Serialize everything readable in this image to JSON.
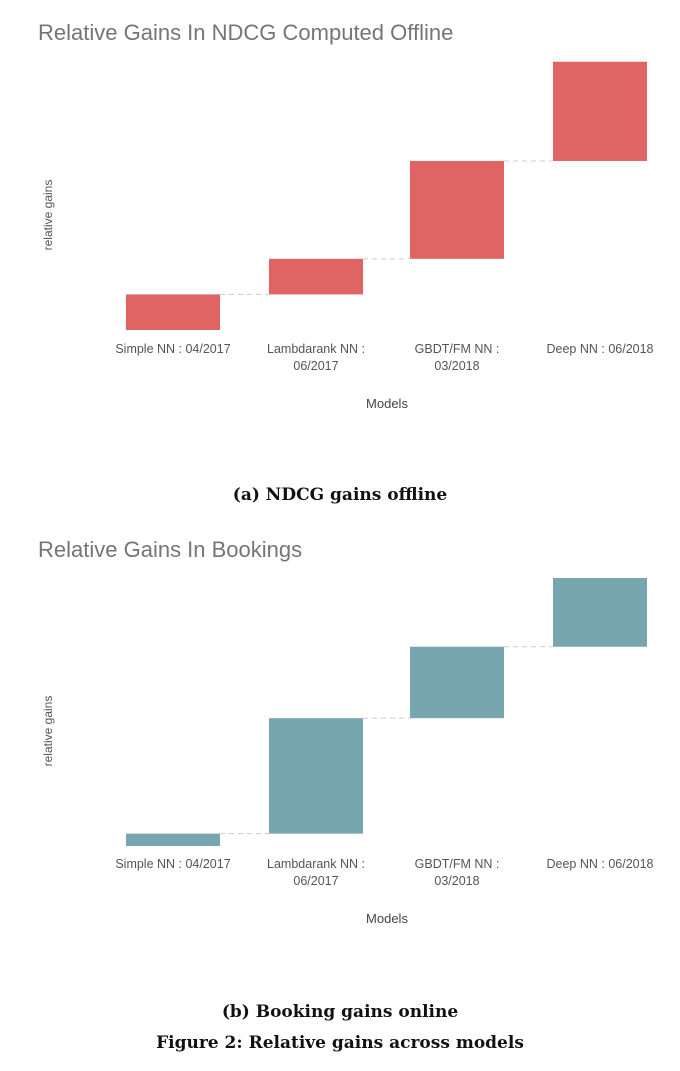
{
  "chart_data": [
    {
      "type": "waterfall",
      "title": "Relative Gains In NDCG Computed Offline",
      "xlabel": "Models",
      "ylabel": "relative gains",
      "categories": [
        "Simple NN : 04/2017",
        "Lambdarank NN : 06/2017",
        "GBDT/FM NN : 03/2018",
        "Deep NN : 06/2018"
      ],
      "category_lines": [
        [
          "Simple NN : 04/2017"
        ],
        [
          "Lambdarank NN :",
          "06/2017"
        ],
        [
          "GBDT/FM NN :",
          "03/2018"
        ],
        [
          "Deep NN : 06/2018"
        ]
      ],
      "values": [
        1.28,
        1.28,
        3.52,
        3.57
      ],
      "ylim": [
        0,
        9.64
      ],
      "color": "#e06464",
      "grid": false,
      "axis_values_shown": false,
      "caption": "(a) NDCG gains offline"
    },
    {
      "type": "waterfall",
      "title": "Relative Gains In Bookings",
      "xlabel": "Models",
      "ylabel": "relative gains",
      "categories": [
        "Simple NN : 04/2017",
        "Lambdarank NN : 06/2017",
        "GBDT/FM NN : 03/2018",
        "Deep NN : 06/2018"
      ],
      "category_lines": [
        [
          "Simple NN : 04/2017"
        ],
        [
          "Lambdarank NN :",
          "06/2017"
        ],
        [
          "GBDT/FM NN :",
          "03/2018"
        ],
        [
          "Deep NN : 06/2018"
        ]
      ],
      "values": [
        0.45,
        4.2,
        2.6,
        2.5
      ],
      "ylim": [
        0,
        9.75
      ],
      "color": "#77a5b0",
      "grid": false,
      "axis_values_shown": false,
      "caption": "(b) Booking gains online"
    }
  ],
  "figure_caption": "Figure 2: Relative gains across models"
}
